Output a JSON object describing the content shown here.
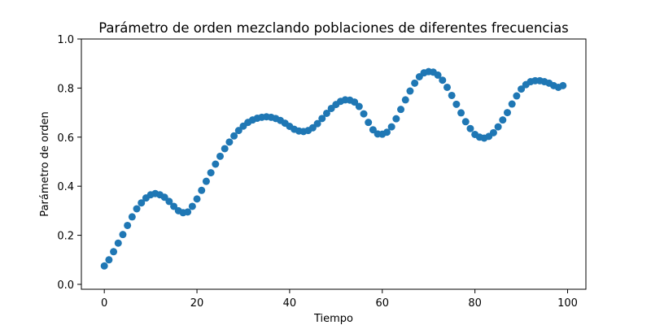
{
  "chart_data": {
    "type": "scatter",
    "title": "Parámetro de orden mezclando poblaciones de diferentes frecuencias",
    "xlabel": "Tiempo",
    "ylabel": "Parámetro de orden",
    "xlim": [
      -4.95,
      103.95
    ],
    "ylim": [
      -0.02,
      1.0
    ],
    "xticks": [
      0,
      20,
      40,
      60,
      80,
      100
    ],
    "xtick_labels": [
      "0",
      "20",
      "40",
      "60",
      "80",
      "100"
    ],
    "yticks": [
      0.0,
      0.2,
      0.4,
      0.6,
      0.8,
      1.0
    ],
    "ytick_labels": [
      "0.0",
      "0.2",
      "0.4",
      "0.6",
      "0.8",
      "1.0"
    ],
    "grid": false,
    "marker_color": "#1f77b4",
    "series": [
      {
        "x": [
          0,
          1,
          2,
          3,
          4,
          5,
          6,
          7,
          8,
          9,
          10,
          11,
          12,
          13,
          14,
          15,
          16,
          17,
          18,
          19,
          20,
          21,
          22,
          23,
          24,
          25,
          26,
          27,
          28,
          29,
          30,
          31,
          32,
          33,
          34,
          35,
          36,
          37,
          38,
          39,
          40,
          41,
          42,
          43,
          44,
          45,
          46,
          47,
          48,
          49,
          50,
          51,
          52,
          53,
          54,
          55,
          56,
          57,
          58,
          59,
          60,
          61,
          62,
          63,
          64,
          65,
          66,
          67,
          68,
          69,
          70,
          71,
          72,
          73,
          74,
          75,
          76,
          77,
          78,
          79,
          80,
          81,
          82,
          83,
          84,
          85,
          86,
          87,
          88,
          89,
          90,
          91,
          92,
          93,
          94,
          95,
          96,
          97,
          98,
          99
        ],
        "y": [
          0.075,
          0.1,
          0.133,
          0.168,
          0.203,
          0.24,
          0.275,
          0.308,
          0.332,
          0.352,
          0.365,
          0.37,
          0.365,
          0.355,
          0.338,
          0.318,
          0.3,
          0.292,
          0.295,
          0.318,
          0.348,
          0.383,
          0.42,
          0.455,
          0.49,
          0.522,
          0.553,
          0.58,
          0.605,
          0.627,
          0.645,
          0.66,
          0.67,
          0.677,
          0.681,
          0.683,
          0.681,
          0.676,
          0.668,
          0.657,
          0.644,
          0.632,
          0.625,
          0.623,
          0.627,
          0.638,
          0.655,
          0.676,
          0.697,
          0.717,
          0.733,
          0.746,
          0.752,
          0.751,
          0.743,
          0.725,
          0.695,
          0.66,
          0.63,
          0.613,
          0.612,
          0.62,
          0.642,
          0.675,
          0.713,
          0.752,
          0.788,
          0.82,
          0.846,
          0.862,
          0.867,
          0.865,
          0.853,
          0.832,
          0.803,
          0.77,
          0.734,
          0.699,
          0.663,
          0.635,
          0.611,
          0.6,
          0.596,
          0.603,
          0.618,
          0.642,
          0.67,
          0.7,
          0.735,
          0.768,
          0.796,
          0.814,
          0.826,
          0.83,
          0.83,
          0.826,
          0.82,
          0.81,
          0.803,
          0.81
        ]
      }
    ]
  }
}
